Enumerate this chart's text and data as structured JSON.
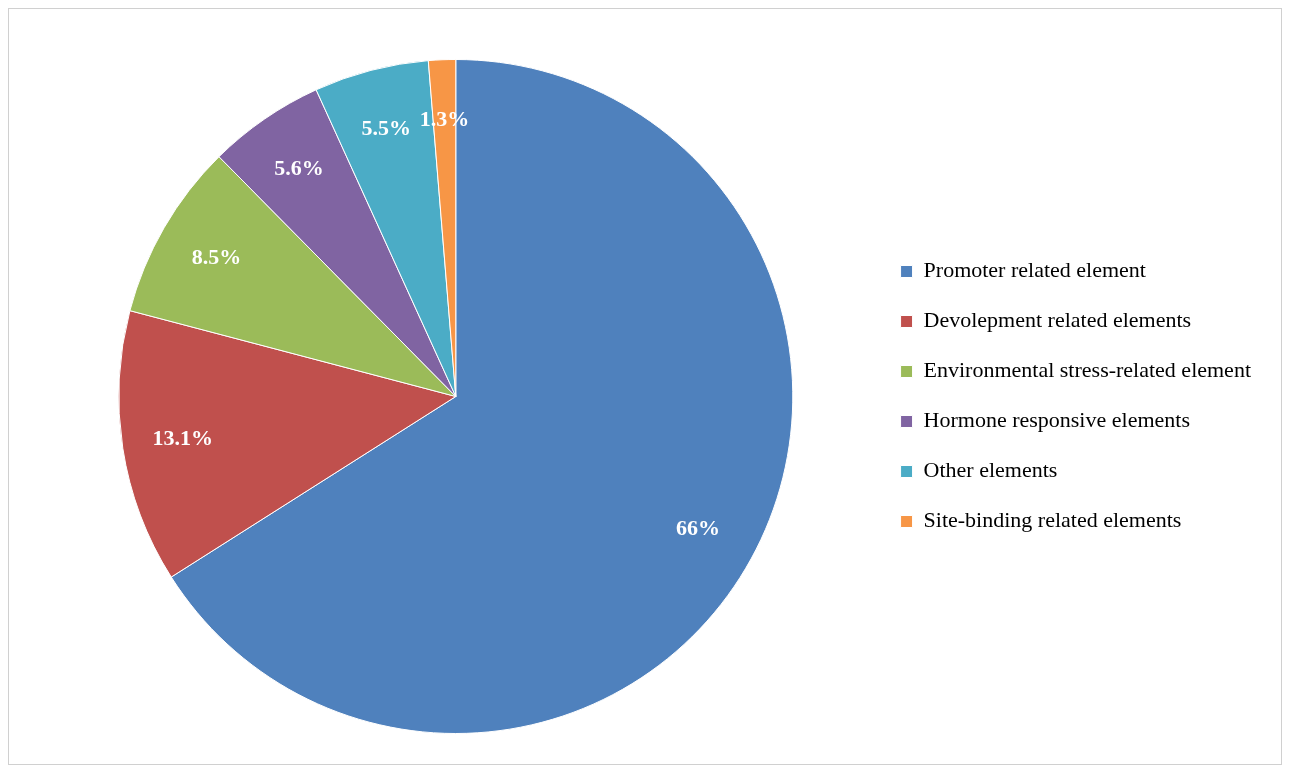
{
  "chart_data": {
    "type": "pie",
    "categories": [
      "Promoter related element",
      "Devolepment related elements",
      "Environmental stress-related element",
      "Hormone responsive elements",
      "Other elements",
      "Site-binding related elements"
    ],
    "values": [
      66,
      13.1,
      8.5,
      5.6,
      5.5,
      1.3
    ],
    "colors": [
      "#4f81bd",
      "#c0504d",
      "#9bbb59",
      "#8064a2",
      "#4bacc6",
      "#f79646"
    ],
    "value_labels": [
      "66%",
      "13.1%",
      "8.5%",
      "5.6%",
      "5.5%",
      "1.3%"
    ],
    "legend": "right"
  }
}
